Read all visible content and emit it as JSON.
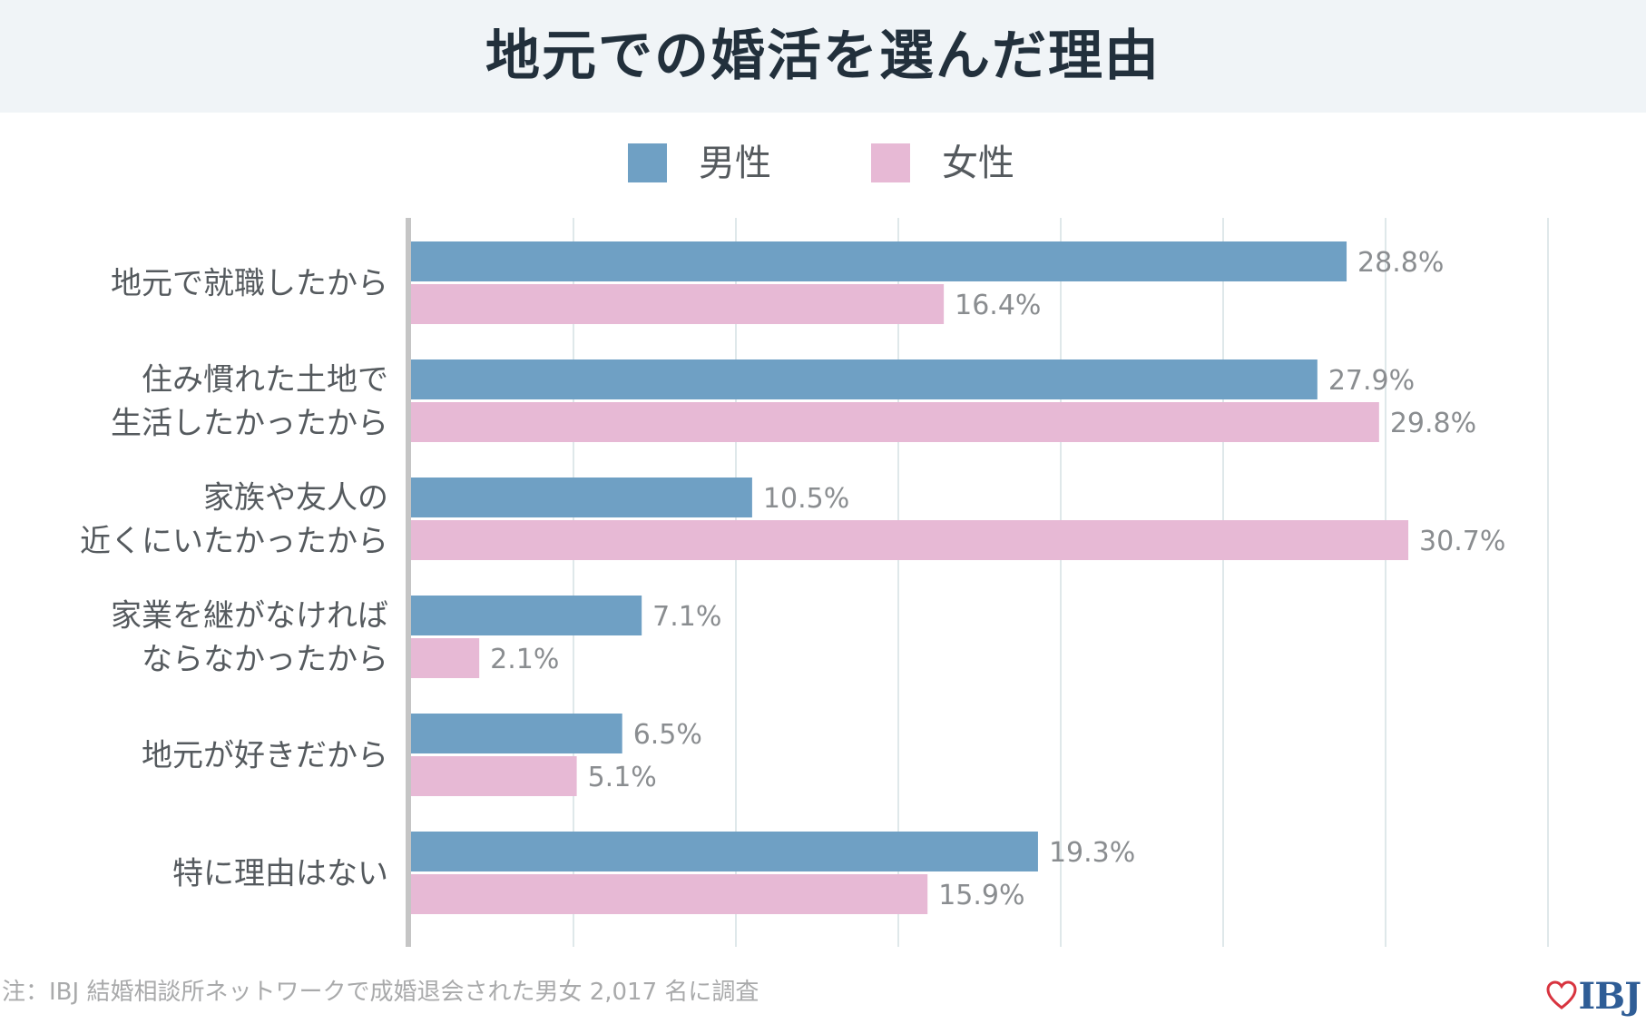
{
  "colors": {
    "male": "#6fa0c4",
    "female": "#e7b9d5",
    "grid": "#dfe8ea",
    "axis": "#c5c5c5",
    "label": "#555a5e",
    "value": "#8a8d90",
    "logo_heart": "#d8343f"
  },
  "logo": {
    "icon": "heart-icon",
    "text": "IBJ"
  },
  "footnote": "注：IBJ 結婚相談所ネットワークで成婚退会された男女 2,017 名に調査",
  "chart_data": {
    "type": "bar",
    "orientation": "horizontal",
    "title": "地元での婚活を選んだ理由",
    "xlabel": "",
    "ylabel": "",
    "xlim": [
      0,
      35
    ],
    "grid": true,
    "legend_position": "top-center",
    "value_suffix": "%",
    "categories": [
      [
        "地元で就職したから"
      ],
      [
        "住み慣れた土地で",
        "生活したかったから"
      ],
      [
        "家族や友人の",
        "近くにいたかったから"
      ],
      [
        "家業を継がなければ",
        "ならなかったから"
      ],
      [
        "地元が好きだから"
      ],
      [
        "特に理由はない"
      ]
    ],
    "series": [
      {
        "name": "男性",
        "values": [
          28.8,
          27.9,
          10.5,
          7.1,
          6.5,
          19.3
        ]
      },
      {
        "name": "女性",
        "values": [
          16.4,
          29.8,
          30.7,
          2.1,
          5.1,
          15.9
        ]
      }
    ]
  }
}
